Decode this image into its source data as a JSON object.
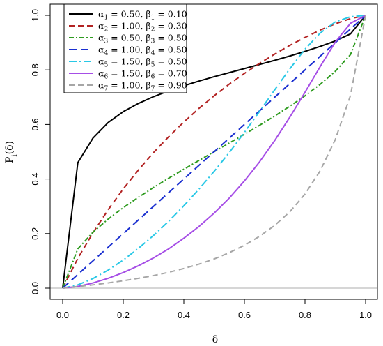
{
  "chart_data": {
    "type": "line",
    "title": "",
    "xlabel": "δ",
    "ylabel": "P_i(δ)",
    "xlim": [
      0,
      1
    ],
    "ylim": [
      0,
      1
    ],
    "x_ticks": [
      0.0,
      0.2,
      0.4,
      0.6,
      0.8,
      1.0
    ],
    "x_tick_labels": [
      "0.0",
      "0.2",
      "0.4",
      "0.6",
      "0.8",
      "1.0"
    ],
    "y_ticks": [
      0.0,
      0.2,
      0.4,
      0.6,
      0.8,
      1.0
    ],
    "y_tick_labels": [
      "0.0",
      "0.2",
      "0.4",
      "0.6",
      "0.8",
      "1.0"
    ],
    "grid": false,
    "legend_position": "top-left",
    "reference_line": {
      "y": 0,
      "color": "#bebebe"
    },
    "x": [
      0,
      0.05,
      0.1,
      0.15,
      0.2,
      0.25,
      0.3,
      0.35,
      0.4,
      0.45,
      0.5,
      0.55,
      0.6,
      0.65,
      0.7,
      0.75,
      0.8,
      0.85,
      0.9,
      0.95,
      1.0
    ],
    "series": [
      {
        "name": "α1 = 0.50, β1 = 0.10",
        "alpha_sub": "1",
        "alpha_val": "0.50",
        "beta_sub": "1",
        "beta_val": "0.10",
        "color": "#000000",
        "dash": "",
        "values": [
          0.0,
          0.46,
          0.55,
          0.607,
          0.647,
          0.677,
          0.702,
          0.723,
          0.742,
          0.759,
          0.775,
          0.79,
          0.805,
          0.82,
          0.835,
          0.851,
          0.868,
          0.886,
          0.906,
          0.932,
          1.0
        ]
      },
      {
        "name": "α2 = 1.00, β2 = 0.30",
        "alpha_sub": "2",
        "alpha_val": "1.00",
        "beta_sub": "2",
        "beta_val": "0.30",
        "color": "#b22222",
        "dash": "8,5",
        "values": [
          0.0,
          0.109,
          0.203,
          0.287,
          0.364,
          0.433,
          0.497,
          0.555,
          0.609,
          0.659,
          0.705,
          0.748,
          0.787,
          0.824,
          0.858,
          0.89,
          0.919,
          0.946,
          0.969,
          0.988,
          1.0
        ]
      },
      {
        "name": "α3 = 0.50, β3 = 0.50",
        "alpha_sub": "3",
        "alpha_val": "0.50",
        "beta_sub": "3",
        "beta_val": "0.50",
        "color": "#2e9b1f",
        "dash": "7,3,2,3",
        "values": [
          0.0,
          0.144,
          0.205,
          0.253,
          0.295,
          0.333,
          0.369,
          0.403,
          0.436,
          0.468,
          0.5,
          0.532,
          0.564,
          0.597,
          0.631,
          0.667,
          0.705,
          0.747,
          0.795,
          0.856,
          1.0
        ]
      },
      {
        "name": "α4 = 1.00, β4 = 0.50",
        "alpha_sub": "4",
        "alpha_val": "1.00",
        "beta_sub": "4",
        "beta_val": "0.50",
        "color": "#1a2fd0",
        "dash": "11,6",
        "values": [
          0.0,
          0.05,
          0.1,
          0.15,
          0.2,
          0.25,
          0.3,
          0.35,
          0.4,
          0.45,
          0.5,
          0.55,
          0.6,
          0.65,
          0.7,
          0.75,
          0.8,
          0.85,
          0.9,
          0.95,
          1.0
        ]
      },
      {
        "name": "α5 = 1.50, β5 = 0.50",
        "alpha_sub": "5",
        "alpha_val": "1.50",
        "beta_sub": "5",
        "beta_val": "0.50",
        "color": "#29c8e6",
        "dash": "11,4,2,4",
        "values": [
          0.0,
          0.012,
          0.035,
          0.066,
          0.103,
          0.146,
          0.193,
          0.245,
          0.302,
          0.363,
          0.428,
          0.497,
          0.571,
          0.648,
          0.727,
          0.804,
          0.876,
          0.935,
          0.976,
          0.995,
          1.0
        ]
      },
      {
        "name": "α6 = 1.50, β6 = 0.70",
        "alpha_sub": "6",
        "alpha_val": "1.50",
        "beta_sub": "6",
        "beta_val": "0.70",
        "color": "#a64ee6",
        "dash": "",
        "values": [
          0.0,
          0.006,
          0.019,
          0.036,
          0.057,
          0.082,
          0.111,
          0.144,
          0.183,
          0.226,
          0.275,
          0.33,
          0.393,
          0.463,
          0.541,
          0.627,
          0.718,
          0.812,
          0.902,
          0.971,
          1.0
        ]
      },
      {
        "name": "α7 = 1.00, β7 = 0.90",
        "alpha_sub": "7",
        "alpha_val": "1.00",
        "beta_sub": "7",
        "beta_val": "0.90",
        "color": "#a6a6a6",
        "dash": "8,5",
        "values": [
          0.0,
          0.006,
          0.012,
          0.019,
          0.027,
          0.036,
          0.046,
          0.058,
          0.072,
          0.088,
          0.107,
          0.13,
          0.157,
          0.19,
          0.23,
          0.28,
          0.345,
          0.43,
          0.545,
          0.706,
          1.0
        ]
      }
    ]
  }
}
